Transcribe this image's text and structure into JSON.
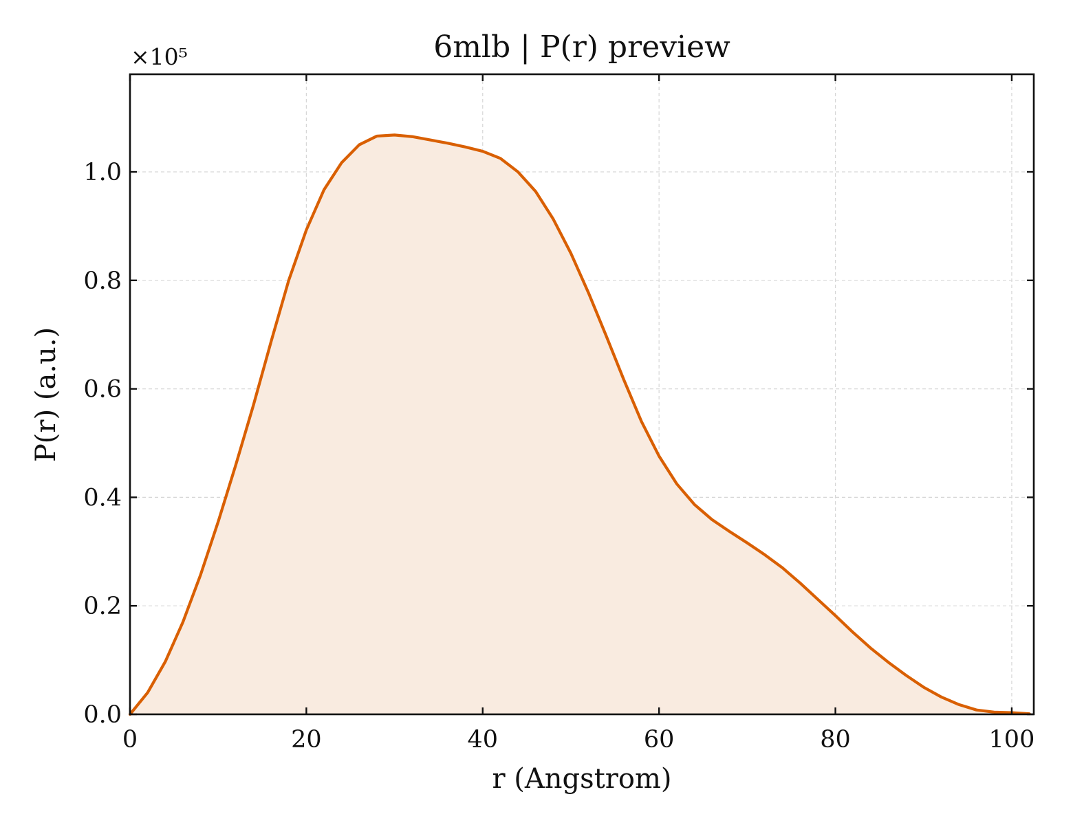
{
  "chart_data": {
    "type": "area",
    "title": "6mlb | P(r) preview",
    "xlabel": "r (Angstrom)",
    "ylabel": "P(r) (a.u.)",
    "y_offset_label": "×10⁵",
    "xlim": [
      0,
      102.5
    ],
    "ylim": [
      0,
      1.18
    ],
    "x_ticks": [
      0,
      20,
      40,
      60,
      80,
      100
    ],
    "x_tick_labels": [
      "0",
      "20",
      "40",
      "60",
      "80",
      "100"
    ],
    "y_ticks": [
      0.0,
      0.2,
      0.4,
      0.6,
      0.8,
      1.0
    ],
    "y_tick_labels": [
      "0.0",
      "0.2",
      "0.4",
      "0.6",
      "0.8",
      "1.0"
    ],
    "grid": true,
    "series": [
      {
        "color": "#d95f02",
        "fill_color": "#f9ebe0",
        "x": [
          0,
          2,
          4,
          6,
          8,
          10,
          12,
          14,
          16,
          18,
          20,
          22,
          24,
          26,
          28,
          30,
          32,
          34,
          36,
          38,
          40,
          42,
          44,
          46,
          48,
          50,
          52,
          54,
          56,
          58,
          60,
          62,
          64,
          66,
          68,
          70,
          72,
          74,
          76,
          78,
          80,
          82,
          84,
          86,
          88,
          90,
          92,
          94,
          96,
          98,
          100,
          102
        ],
        "y": [
          0.0,
          0.04,
          0.097,
          0.17,
          0.257,
          0.355,
          0.46,
          0.57,
          0.687,
          0.8,
          0.893,
          0.967,
          1.017,
          1.05,
          1.066,
          1.068,
          1.065,
          1.059,
          1.053,
          1.046,
          1.038,
          1.025,
          1.0,
          0.964,
          0.913,
          0.85,
          0.777,
          0.698,
          0.617,
          0.54,
          0.476,
          0.425,
          0.387,
          0.359,
          0.337,
          0.316,
          0.294,
          0.27,
          0.242,
          0.212,
          0.182,
          0.151,
          0.122,
          0.096,
          0.072,
          0.05,
          0.032,
          0.018,
          0.008,
          0.004,
          0.003,
          0.001
        ]
      }
    ]
  }
}
